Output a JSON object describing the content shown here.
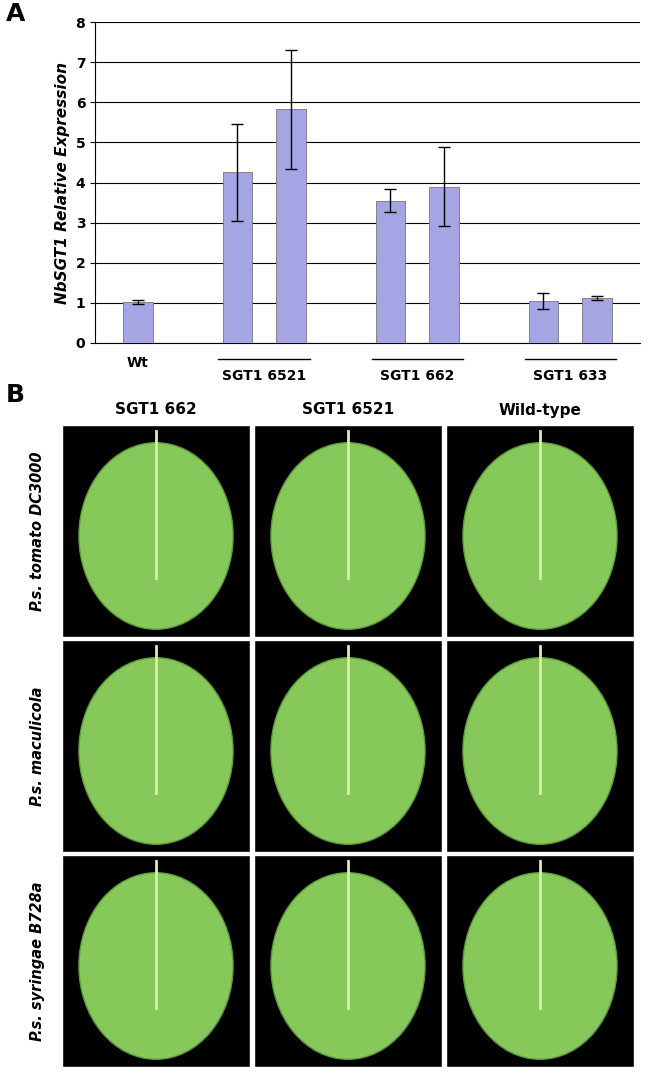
{
  "panel_labels": [
    "A",
    "B"
  ],
  "chart_data": {
    "type": "bar",
    "y_label": "NbSGT1 Relative Expression",
    "ylim": [
      0,
      8
    ],
    "yticks": [
      0,
      1,
      2,
      3,
      4,
      5,
      6,
      7,
      8
    ],
    "grid": true,
    "color": "#a5a5e3",
    "groups": [
      {
        "label": "Wt",
        "values": [
          1.02
        ],
        "errors": [
          0.06
        ]
      },
      {
        "label": "SGT1 6521",
        "values": [
          4.25,
          5.82
        ],
        "errors": [
          1.22,
          1.48
        ]
      },
      {
        "label": "SGT1 662",
        "values": [
          3.55,
          3.9
        ],
        "errors": [
          0.28,
          0.98
        ]
      },
      {
        "label": "SGT1 633",
        "values": [
          1.05,
          1.12
        ],
        "errors": [
          0.2,
          0.06
        ]
      }
    ]
  },
  "photo_grid": {
    "columns": [
      "SGT1 662",
      "SGT1 6521",
      "Wild-type"
    ],
    "rows": [
      "P.s. tomato DC3000",
      "P.s. maculicola",
      "P.s. syringae B728a"
    ]
  }
}
